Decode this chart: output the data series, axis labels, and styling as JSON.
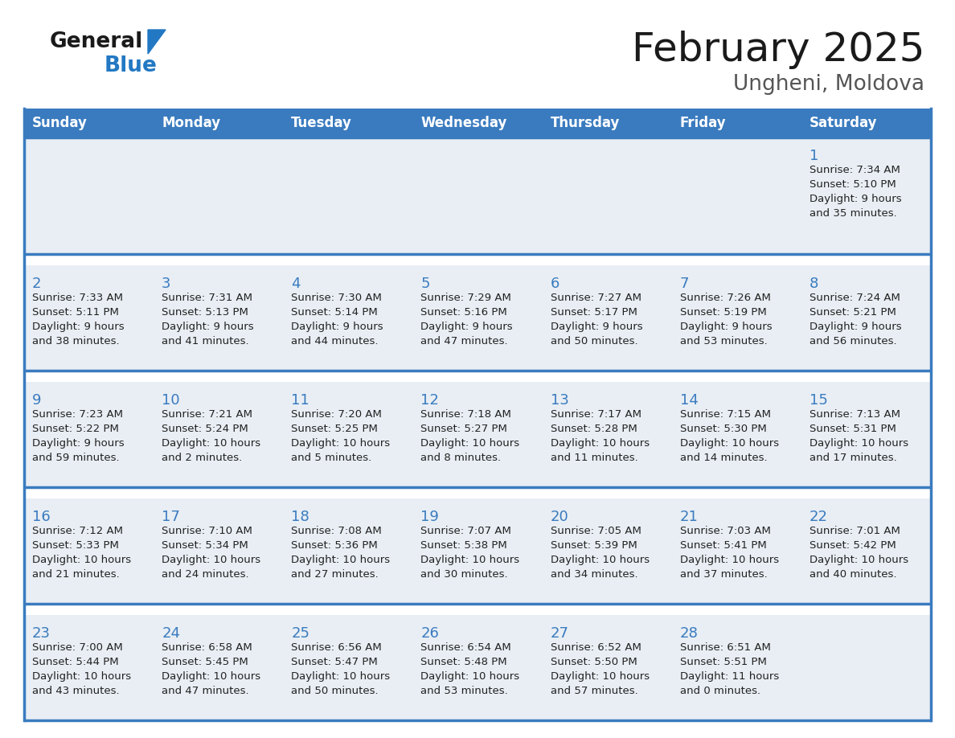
{
  "title": "February 2025",
  "subtitle": "Ungheni, Moldova",
  "header_bg": "#3a7bbf",
  "header_text_color": "#ffffff",
  "border_color": "#3a7bbf",
  "cell_bg": "#e8eef4",
  "row_gap_color": "#ffffff",
  "day_number_color": "#3a7bbf",
  "text_color": "#222222",
  "day_headers": [
    "Sunday",
    "Monday",
    "Tuesday",
    "Wednesday",
    "Thursday",
    "Friday",
    "Saturday"
  ],
  "days_data": [
    {
      "day": 1,
      "col": 6,
      "row": 0,
      "sunrise": "7:34 AM",
      "sunset": "5:10 PM",
      "daylight_h": "9 hours",
      "daylight_m": "and 35 minutes."
    },
    {
      "day": 2,
      "col": 0,
      "row": 1,
      "sunrise": "7:33 AM",
      "sunset": "5:11 PM",
      "daylight_h": "9 hours",
      "daylight_m": "and 38 minutes."
    },
    {
      "day": 3,
      "col": 1,
      "row": 1,
      "sunrise": "7:31 AM",
      "sunset": "5:13 PM",
      "daylight_h": "9 hours",
      "daylight_m": "and 41 minutes."
    },
    {
      "day": 4,
      "col": 2,
      "row": 1,
      "sunrise": "7:30 AM",
      "sunset": "5:14 PM",
      "daylight_h": "9 hours",
      "daylight_m": "and 44 minutes."
    },
    {
      "day": 5,
      "col": 3,
      "row": 1,
      "sunrise": "7:29 AM",
      "sunset": "5:16 PM",
      "daylight_h": "9 hours",
      "daylight_m": "and 47 minutes."
    },
    {
      "day": 6,
      "col": 4,
      "row": 1,
      "sunrise": "7:27 AM",
      "sunset": "5:17 PM",
      "daylight_h": "9 hours",
      "daylight_m": "and 50 minutes."
    },
    {
      "day": 7,
      "col": 5,
      "row": 1,
      "sunrise": "7:26 AM",
      "sunset": "5:19 PM",
      "daylight_h": "9 hours",
      "daylight_m": "and 53 minutes."
    },
    {
      "day": 8,
      "col": 6,
      "row": 1,
      "sunrise": "7:24 AM",
      "sunset": "5:21 PM",
      "daylight_h": "9 hours",
      "daylight_m": "and 56 minutes."
    },
    {
      "day": 9,
      "col": 0,
      "row": 2,
      "sunrise": "7:23 AM",
      "sunset": "5:22 PM",
      "daylight_h": "9 hours",
      "daylight_m": "and 59 minutes."
    },
    {
      "day": 10,
      "col": 1,
      "row": 2,
      "sunrise": "7:21 AM",
      "sunset": "5:24 PM",
      "daylight_h": "10 hours",
      "daylight_m": "and 2 minutes."
    },
    {
      "day": 11,
      "col": 2,
      "row": 2,
      "sunrise": "7:20 AM",
      "sunset": "5:25 PM",
      "daylight_h": "10 hours",
      "daylight_m": "and 5 minutes."
    },
    {
      "day": 12,
      "col": 3,
      "row": 2,
      "sunrise": "7:18 AM",
      "sunset": "5:27 PM",
      "daylight_h": "10 hours",
      "daylight_m": "and 8 minutes."
    },
    {
      "day": 13,
      "col": 4,
      "row": 2,
      "sunrise": "7:17 AM",
      "sunset": "5:28 PM",
      "daylight_h": "10 hours",
      "daylight_m": "and 11 minutes."
    },
    {
      "day": 14,
      "col": 5,
      "row": 2,
      "sunrise": "7:15 AM",
      "sunset": "5:30 PM",
      "daylight_h": "10 hours",
      "daylight_m": "and 14 minutes."
    },
    {
      "day": 15,
      "col": 6,
      "row": 2,
      "sunrise": "7:13 AM",
      "sunset": "5:31 PM",
      "daylight_h": "10 hours",
      "daylight_m": "and 17 minutes."
    },
    {
      "day": 16,
      "col": 0,
      "row": 3,
      "sunrise": "7:12 AM",
      "sunset": "5:33 PM",
      "daylight_h": "10 hours",
      "daylight_m": "and 21 minutes."
    },
    {
      "day": 17,
      "col": 1,
      "row": 3,
      "sunrise": "7:10 AM",
      "sunset": "5:34 PM",
      "daylight_h": "10 hours",
      "daylight_m": "and 24 minutes."
    },
    {
      "day": 18,
      "col": 2,
      "row": 3,
      "sunrise": "7:08 AM",
      "sunset": "5:36 PM",
      "daylight_h": "10 hours",
      "daylight_m": "and 27 minutes."
    },
    {
      "day": 19,
      "col": 3,
      "row": 3,
      "sunrise": "7:07 AM",
      "sunset": "5:38 PM",
      "daylight_h": "10 hours",
      "daylight_m": "and 30 minutes."
    },
    {
      "day": 20,
      "col": 4,
      "row": 3,
      "sunrise": "7:05 AM",
      "sunset": "5:39 PM",
      "daylight_h": "10 hours",
      "daylight_m": "and 34 minutes."
    },
    {
      "day": 21,
      "col": 5,
      "row": 3,
      "sunrise": "7:03 AM",
      "sunset": "5:41 PM",
      "daylight_h": "10 hours",
      "daylight_m": "and 37 minutes."
    },
    {
      "day": 22,
      "col": 6,
      "row": 3,
      "sunrise": "7:01 AM",
      "sunset": "5:42 PM",
      "daylight_h": "10 hours",
      "daylight_m": "and 40 minutes."
    },
    {
      "day": 23,
      "col": 0,
      "row": 4,
      "sunrise": "7:00 AM",
      "sunset": "5:44 PM",
      "daylight_h": "10 hours",
      "daylight_m": "and 43 minutes."
    },
    {
      "day": 24,
      "col": 1,
      "row": 4,
      "sunrise": "6:58 AM",
      "sunset": "5:45 PM",
      "daylight_h": "10 hours",
      "daylight_m": "and 47 minutes."
    },
    {
      "day": 25,
      "col": 2,
      "row": 4,
      "sunrise": "6:56 AM",
      "sunset": "5:47 PM",
      "daylight_h": "10 hours",
      "daylight_m": "and 50 minutes."
    },
    {
      "day": 26,
      "col": 3,
      "row": 4,
      "sunrise": "6:54 AM",
      "sunset": "5:48 PM",
      "daylight_h": "10 hours",
      "daylight_m": "and 53 minutes."
    },
    {
      "day": 27,
      "col": 4,
      "row": 4,
      "sunrise": "6:52 AM",
      "sunset": "5:50 PM",
      "daylight_h": "10 hours",
      "daylight_m": "and 57 minutes."
    },
    {
      "day": 28,
      "col": 5,
      "row": 4,
      "sunrise": "6:51 AM",
      "sunset": "5:51 PM",
      "daylight_h": "11 hours",
      "daylight_m": "and 0 minutes."
    }
  ],
  "num_rows": 5,
  "num_cols": 7,
  "logo_general_color": "#1a1a1a",
  "logo_blue_color": "#2278c3",
  "title_color": "#1a1a1a",
  "subtitle_color": "#555555"
}
